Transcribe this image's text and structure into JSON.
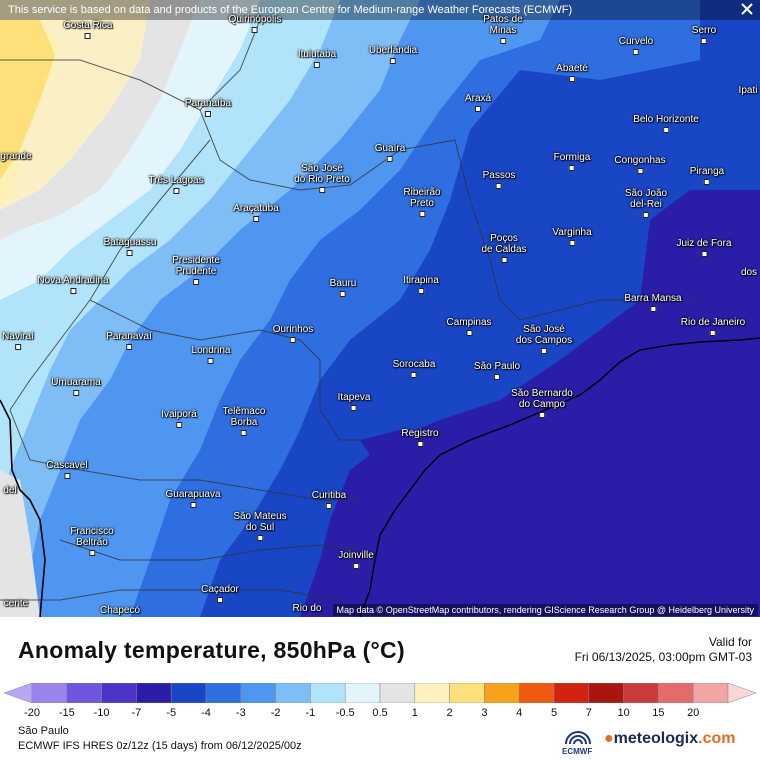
{
  "notice": "This service is based on data and products of the European Centre for Medium-range Weather Forecasts (ECMWF)",
  "attribution": "Map data © OpenStreetMap contributors, rendering GIScience Research Group @ Heidelberg University",
  "cities": [
    {
      "name": "Costa Rica"
    },
    {
      "name": "Quirinópolis"
    },
    {
      "name": "Patos de\nMinas"
    },
    {
      "name": "Curvelo"
    },
    {
      "name": "Serro"
    },
    {
      "name": "Ituiutaba"
    },
    {
      "name": "Uberlândia"
    },
    {
      "name": "Abaeté"
    },
    {
      "name": "Ipati"
    },
    {
      "name": "Paranaíba"
    },
    {
      "name": "Araxá"
    },
    {
      "name": "Belo Horizonte"
    },
    {
      "name": "Guaíra"
    },
    {
      "name": "Formiga"
    },
    {
      "name": "Congonhas"
    },
    {
      "name": "São José\ndo Rio Preto"
    },
    {
      "name": "Ribeirão\nPreto"
    },
    {
      "name": "Passos"
    },
    {
      "name": "Piranga"
    },
    {
      "name": "Três Lagoas"
    },
    {
      "name": "São João\ndel-Rei"
    },
    {
      "name": "Araçatuba"
    },
    {
      "name": "Poços\nde Caldas"
    },
    {
      "name": "Varginha"
    },
    {
      "name": "Juiz de Fora"
    },
    {
      "name": "Bataguassu"
    },
    {
      "name": "Presidente\nPrudente"
    },
    {
      "name": "Nova Andradina"
    },
    {
      "name": "Bauru"
    },
    {
      "name": "Itirapina"
    },
    {
      "name": "Barra Mansa"
    },
    {
      "name": "Campinas"
    },
    {
      "name": "São José\ndos Campos"
    },
    {
      "name": "Rio de Janeiro"
    },
    {
      "name": "Ourinhos"
    },
    {
      "name": "Paranavaí"
    },
    {
      "name": "Naviraí"
    },
    {
      "name": "Londrina"
    },
    {
      "name": "Sorocaba"
    },
    {
      "name": "São Paulo"
    },
    {
      "name": "Umuarama"
    },
    {
      "name": "São Bernardo\ndo Campo"
    },
    {
      "name": "Itapeva"
    },
    {
      "name": "Ivaiporã"
    },
    {
      "name": "Telêmaco\nBorba"
    },
    {
      "name": "Registro"
    },
    {
      "name": "Cascavel"
    },
    {
      "name": "Guarapuava"
    },
    {
      "name": "Curitiba"
    },
    {
      "name": "São Mateus\ndo Sul"
    },
    {
      "name": "Francisco\nBeltrão"
    },
    {
      "name": "Joinville"
    },
    {
      "name": "Caçador"
    },
    {
      "name": "Chapecó"
    },
    {
      "name": "Rio do"
    },
    {
      "name": "grande"
    },
    {
      "name": "del"
    },
    {
      "name": "cente"
    },
    {
      "name": "dos"
    }
  ],
  "legend": {
    "title": "Anomaly temperature, 850hPa (°C)",
    "valid_label": "Valid for",
    "valid_date": "Fri 06/13/2025, 03:00pm GMT-03",
    "ticks": [
      "-20",
      "-15",
      "-10",
      "-7",
      "-5",
      "-4",
      "-3",
      "-2",
      "-1",
      "-0.5",
      "0.5",
      "1",
      "2",
      "3",
      "4",
      "5",
      "7",
      "10",
      "15",
      "20"
    ],
    "colors": [
      "#b7a7f5",
      "#9b83ee",
      "#6f55e0",
      "#4b34c7",
      "#2a1ea8",
      "#1846c5",
      "#2f6ee0",
      "#4f96f0",
      "#7fbdf6",
      "#b1e4fa",
      "#e3f5fc",
      "#e4e4e4",
      "#fff2c0",
      "#fde07a",
      "#f7a21b",
      "#f05a10",
      "#d12310",
      "#a8160f",
      "#cc3b3b",
      "#e56b6b",
      "#f3a5a5",
      "#fad6d6"
    ],
    "region": "São Paulo",
    "model": "ECMWF IFS HRES 0z/12z (15 days) from 06/12/2025/00z",
    "ecmwf_label": "ECMWF",
    "brand_a": "meteologix",
    "brand_b": ".com"
  }
}
